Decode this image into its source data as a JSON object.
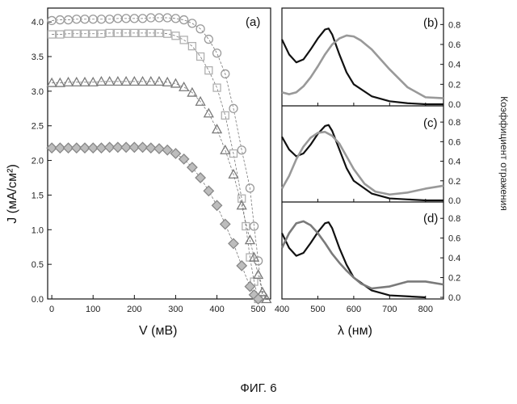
{
  "caption": "ФИГ. 6",
  "chart_data": [
    {
      "id": "a",
      "type": "scatter",
      "panel_label": "(a)",
      "xlabel": "V (мВ)",
      "ylabel": "J (мА/см²)",
      "xlim": [
        -10,
        530
      ],
      "ylim": [
        0,
        4.2
      ],
      "xticks": [
        0,
        100,
        200,
        300,
        400,
        500
      ],
      "yticks": [
        0.0,
        0.5,
        1.0,
        1.5,
        2.0,
        2.5,
        3.0,
        3.5,
        4.0
      ],
      "series": [
        {
          "marker": "circle",
          "color": "#9a9a9a",
          "x": [
            0,
            20,
            40,
            60,
            80,
            100,
            120,
            140,
            160,
            180,
            200,
            220,
            240,
            260,
            280,
            300,
            320,
            340,
            360,
            380,
            400,
            420,
            440,
            460,
            480,
            490,
            500,
            510
          ],
          "y": [
            4.02,
            4.03,
            4.03,
            4.04,
            4.04,
            4.04,
            4.04,
            4.04,
            4.05,
            4.05,
            4.05,
            4.05,
            4.06,
            4.06,
            4.06,
            4.05,
            4.03,
            3.98,
            3.9,
            3.75,
            3.55,
            3.25,
            2.75,
            2.15,
            1.6,
            1.05,
            0.55,
            0.05
          ]
        },
        {
          "marker": "square",
          "color": "#b0b0b0",
          "x": [
            0,
            20,
            40,
            60,
            80,
            100,
            120,
            140,
            160,
            180,
            200,
            220,
            240,
            260,
            280,
            300,
            320,
            340,
            360,
            380,
            400,
            420,
            440,
            460,
            470,
            480,
            490,
            500
          ],
          "y": [
            3.82,
            3.82,
            3.83,
            3.83,
            3.83,
            3.83,
            3.83,
            3.84,
            3.84,
            3.84,
            3.84,
            3.84,
            3.84,
            3.84,
            3.83,
            3.8,
            3.74,
            3.65,
            3.5,
            3.3,
            3.05,
            2.65,
            2.1,
            1.45,
            1.05,
            0.6,
            0.25,
            0.0
          ]
        },
        {
          "marker": "triangle",
          "color": "#7a7a7a",
          "x": [
            0,
            20,
            40,
            60,
            80,
            100,
            120,
            140,
            160,
            180,
            200,
            220,
            240,
            260,
            280,
            300,
            320,
            340,
            360,
            380,
            400,
            420,
            440,
            460,
            480,
            490,
            500,
            510,
            520
          ],
          "y": [
            3.12,
            3.12,
            3.13,
            3.13,
            3.13,
            3.13,
            3.14,
            3.14,
            3.14,
            3.14,
            3.14,
            3.14,
            3.14,
            3.14,
            3.13,
            3.11,
            3.06,
            2.98,
            2.85,
            2.68,
            2.45,
            2.15,
            1.8,
            1.35,
            0.85,
            0.6,
            0.35,
            0.1,
            0.0
          ]
        },
        {
          "marker": "diamond",
          "color": "#888888",
          "x": [
            0,
            20,
            40,
            60,
            80,
            100,
            120,
            140,
            160,
            180,
            200,
            220,
            240,
            260,
            280,
            300,
            320,
            340,
            360,
            380,
            400,
            420,
            440,
            460,
            480,
            490,
            500
          ],
          "y": [
            2.18,
            2.18,
            2.18,
            2.18,
            2.18,
            2.18,
            2.18,
            2.19,
            2.19,
            2.19,
            2.19,
            2.19,
            2.18,
            2.17,
            2.15,
            2.1,
            2.02,
            1.9,
            1.75,
            1.56,
            1.35,
            1.08,
            0.8,
            0.48,
            0.18,
            0.06,
            0.0
          ]
        }
      ]
    },
    {
      "id": "b",
      "type": "line",
      "panel_label": "(b)",
      "xlim": [
        400,
        850
      ],
      "ylim": [
        0,
        0.9
      ],
      "xticks": [
        400,
        500,
        600,
        700,
        800
      ],
      "yticks": [
        0.0,
        0.2,
        0.4,
        0.6,
        0.8
      ],
      "series": [
        {
          "color": "#111111",
          "x": [
            400,
            420,
            440,
            460,
            480,
            500,
            520,
            530,
            540,
            560,
            580,
            600,
            650,
            700,
            750,
            800,
            850
          ],
          "y": [
            0.65,
            0.5,
            0.42,
            0.45,
            0.55,
            0.66,
            0.75,
            0.76,
            0.7,
            0.5,
            0.32,
            0.2,
            0.08,
            0.03,
            0.01,
            0.0,
            0.0
          ]
        },
        {
          "color": "#999999",
          "x": [
            400,
            420,
            440,
            460,
            480,
            500,
            520,
            540,
            560,
            580,
            600,
            620,
            650,
            700,
            750,
            800,
            850
          ],
          "y": [
            0.12,
            0.1,
            0.12,
            0.18,
            0.27,
            0.38,
            0.5,
            0.6,
            0.66,
            0.69,
            0.68,
            0.64,
            0.55,
            0.35,
            0.17,
            0.07,
            0.06
          ]
        }
      ]
    },
    {
      "id": "c",
      "type": "line",
      "panel_label": "(c)",
      "xlim": [
        400,
        850
      ],
      "ylim": [
        0,
        0.9
      ],
      "xticks": [
        400,
        500,
        600,
        700,
        800
      ],
      "yticks": [
        0.0,
        0.2,
        0.4,
        0.6,
        0.8
      ],
      "series": [
        {
          "color": "#111111",
          "x": [
            400,
            420,
            440,
            460,
            480,
            500,
            520,
            530,
            540,
            560,
            580,
            600,
            650,
            700,
            750,
            800,
            850
          ],
          "y": [
            0.65,
            0.52,
            0.45,
            0.48,
            0.57,
            0.68,
            0.76,
            0.77,
            0.71,
            0.52,
            0.33,
            0.2,
            0.07,
            0.02,
            0.01,
            0.0,
            0.0
          ]
        },
        {
          "color": "#999999",
          "x": [
            400,
            420,
            440,
            460,
            480,
            500,
            520,
            540,
            560,
            580,
            600,
            630,
            660,
            700,
            750,
            800,
            850
          ],
          "y": [
            0.12,
            0.25,
            0.42,
            0.55,
            0.64,
            0.69,
            0.7,
            0.66,
            0.58,
            0.45,
            0.32,
            0.17,
            0.09,
            0.06,
            0.08,
            0.12,
            0.15
          ]
        }
      ]
    },
    {
      "id": "d",
      "type": "line",
      "panel_label": "(d)",
      "xlim": [
        400,
        850
      ],
      "ylim": [
        0,
        0.9
      ],
      "xticks": [
        400,
        500,
        600,
        700,
        800
      ],
      "yticks": [
        0.0,
        0.2,
        0.4,
        0.6,
        0.8
      ],
      "xlabel": "λ (нм)",
      "ylabel_right": "Коэффициент отражения",
      "series": [
        {
          "color": "#111111",
          "x": [
            400,
            420,
            440,
            460,
            480,
            500,
            520,
            530,
            540,
            560,
            580,
            600,
            650,
            700,
            750,
            800
          ],
          "y": [
            0.65,
            0.5,
            0.42,
            0.45,
            0.55,
            0.66,
            0.75,
            0.76,
            0.7,
            0.5,
            0.33,
            0.2,
            0.07,
            0.02,
            0.01,
            0.0
          ]
        },
        {
          "color": "#7a7a7a",
          "x": [
            400,
            420,
            440,
            460,
            480,
            500,
            520,
            540,
            560,
            580,
            600,
            620,
            650,
            700,
            750,
            800,
            850
          ],
          "y": [
            0.5,
            0.65,
            0.75,
            0.77,
            0.73,
            0.65,
            0.55,
            0.44,
            0.35,
            0.27,
            0.2,
            0.14,
            0.09,
            0.11,
            0.16,
            0.16,
            0.13
          ]
        }
      ]
    }
  ]
}
